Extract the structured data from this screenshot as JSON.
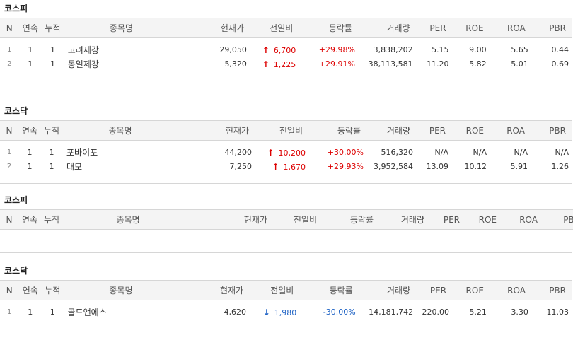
{
  "headers": [
    "N",
    "연속",
    "누적",
    "종목명",
    "현재가",
    "전일비",
    "등락률",
    "거래량",
    "PER",
    "ROE",
    "ROA",
    "PBR"
  ],
  "sections": [
    {
      "market": "코스피",
      "rows": [
        {
          "n": "1",
          "streak": "1",
          "total": "1",
          "name": "고려제강",
          "price": "29,050",
          "dir": "up",
          "change": "6,700",
          "rate": "+29.98%",
          "volume": "3,838,202",
          "per": "5.15",
          "roe": "9.00",
          "roa": "5.65",
          "pbr": "0.44"
        },
        {
          "n": "2",
          "streak": "1",
          "total": "1",
          "name": "동일제강",
          "price": "5,320",
          "dir": "up",
          "change": "1,225",
          "rate": "+29.91%",
          "volume": "38,113,581",
          "per": "11.20",
          "roe": "5.82",
          "roa": "5.01",
          "pbr": "0.69"
        }
      ]
    },
    {
      "market": "코스닥",
      "rows": [
        {
          "n": "1",
          "streak": "1",
          "total": "1",
          "name": "포바이포",
          "price": "44,200",
          "dir": "up",
          "change": "10,200",
          "rate": "+30.00%",
          "volume": "516,320",
          "per": "N/A",
          "roe": "N/A",
          "roa": "N/A",
          "pbr": "N/A"
        },
        {
          "n": "2",
          "streak": "1",
          "total": "1",
          "name": "대모",
          "price": "7,250",
          "dir": "up",
          "change": "1,670",
          "rate": "+29.93%",
          "volume": "3,952,584",
          "per": "13.09",
          "roe": "10.12",
          "roa": "5.91",
          "pbr": "1.26"
        }
      ]
    },
    {
      "market": "코스피",
      "rows": []
    },
    {
      "market": "코스닥",
      "rows": [
        {
          "n": "1",
          "streak": "1",
          "total": "1",
          "name": "골드앤에스",
          "price": "4,620",
          "dir": "down",
          "change": "1,980",
          "rate": "-30.00%",
          "volume": "14,181,742",
          "per": "220.00",
          "roe": "5.21",
          "roa": "3.30",
          "pbr": "11.03"
        }
      ]
    }
  ],
  "colors": {
    "up": "#dd0000",
    "down": "#1f63c5",
    "header_bg": "#f4f4f4",
    "border": "#d6d6d6"
  },
  "icons": {
    "up": "arrow-up-icon",
    "down": "arrow-down-icon"
  }
}
